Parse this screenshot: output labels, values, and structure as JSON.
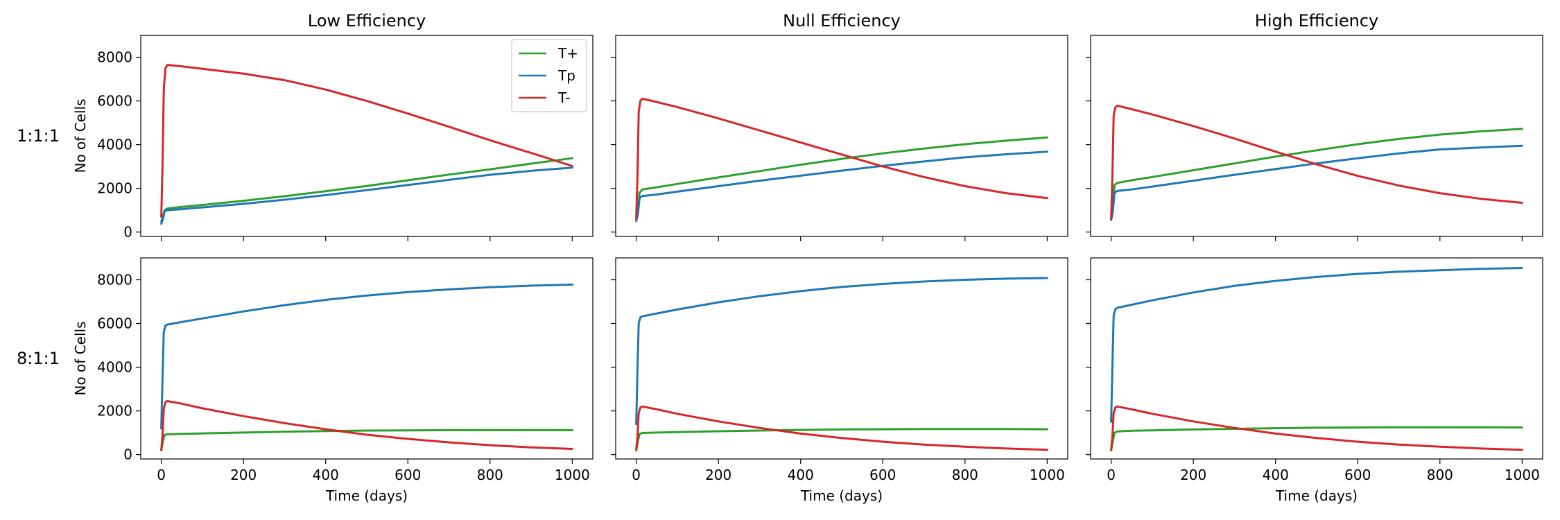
{
  "figure": {
    "column_titles": [
      "Low Efficiency",
      "Null Efficiency",
      "High Efficiency"
    ],
    "row_labels": [
      "1:1:1",
      "8:1:1"
    ],
    "ylabel": "No of Cells",
    "xlabel": "Time (days)",
    "legend": [
      {
        "name": "T+",
        "color": "#2ca02c"
      },
      {
        "name": "Tp",
        "color": "#1f77b4"
      },
      {
        "name": "T-",
        "color": "#d62728"
      }
    ],
    "legend_location": "top-right"
  },
  "chart_data": [
    {
      "type": "line",
      "title": "Low Efficiency",
      "row": "1:1:1",
      "xlabel": "",
      "ylabel": "No of Cells",
      "xlim": [
        -50,
        1050
      ],
      "ylim": [
        -200,
        9000
      ],
      "xticks": [
        0,
        200,
        400,
        600,
        800,
        1000
      ],
      "yticks": [
        0,
        2000,
        4000,
        6000,
        8000
      ],
      "series": [
        {
          "name": "T+",
          "color": "#2ca02c",
          "x": [
            0,
            4,
            8,
            15,
            50,
            100,
            200,
            300,
            400,
            500,
            600,
            700,
            800,
            900,
            1000
          ],
          "y": [
            500,
            700,
            1000,
            1080,
            1150,
            1240,
            1430,
            1640,
            1870,
            2110,
            2370,
            2630,
            2870,
            3130,
            3380
          ]
        },
        {
          "name": "Tp",
          "color": "#1f77b4",
          "x": [
            0,
            4,
            8,
            15,
            50,
            100,
            200,
            300,
            400,
            500,
            600,
            700,
            800,
            900,
            1000
          ],
          "y": [
            380,
            600,
            950,
            1000,
            1050,
            1130,
            1290,
            1480,
            1690,
            1920,
            2150,
            2390,
            2620,
            2800,
            2950
          ]
        },
        {
          "name": "T-",
          "color": "#d62728",
          "x": [
            0,
            3,
            6,
            10,
            15,
            50,
            100,
            200,
            300,
            400,
            500,
            600,
            700,
            800,
            900,
            1000
          ],
          "y": [
            700,
            3000,
            6500,
            7500,
            7650,
            7580,
            7470,
            7250,
            6950,
            6520,
            6000,
            5420,
            4820,
            4200,
            3620,
            3020
          ]
        }
      ]
    },
    {
      "type": "line",
      "title": "Null Efficiency",
      "row": "1:1:1",
      "xlabel": "",
      "ylabel": "",
      "xlim": [
        -50,
        1050
      ],
      "ylim": [
        -200,
        9000
      ],
      "xticks": [
        0,
        200,
        400,
        600,
        800,
        1000
      ],
      "yticks": [
        0,
        2000,
        4000,
        6000,
        8000
      ],
      "series": [
        {
          "name": "T+",
          "color": "#2ca02c",
          "x": [
            0,
            4,
            8,
            15,
            50,
            100,
            200,
            300,
            400,
            500,
            600,
            700,
            800,
            900,
            1000
          ],
          "y": [
            600,
            900,
            1800,
            1950,
            2050,
            2200,
            2500,
            2790,
            3080,
            3350,
            3600,
            3820,
            4020,
            4180,
            4330
          ]
        },
        {
          "name": "Tp",
          "color": "#1f77b4",
          "x": [
            0,
            4,
            8,
            15,
            50,
            100,
            200,
            300,
            400,
            500,
            600,
            700,
            800,
            900,
            1000
          ],
          "y": [
            500,
            800,
            1550,
            1650,
            1720,
            1850,
            2100,
            2350,
            2580,
            2810,
            3030,
            3230,
            3420,
            3560,
            3680
          ]
        },
        {
          "name": "T-",
          "color": "#d62728",
          "x": [
            0,
            3,
            6,
            10,
            15,
            50,
            100,
            200,
            300,
            400,
            500,
            600,
            700,
            800,
            900,
            1000
          ],
          "y": [
            600,
            2500,
            5500,
            6000,
            6100,
            5950,
            5720,
            5200,
            4650,
            4100,
            3550,
            3000,
            2520,
            2100,
            1780,
            1550
          ]
        }
      ]
    },
    {
      "type": "line",
      "title": "High Efficiency",
      "row": "1:1:1",
      "xlabel": "",
      "ylabel": "",
      "xlim": [
        -50,
        1050
      ],
      "ylim": [
        -200,
        9000
      ],
      "xticks": [
        0,
        200,
        400,
        600,
        800,
        1000
      ],
      "yticks": [
        0,
        2000,
        4000,
        6000,
        8000
      ],
      "series": [
        {
          "name": "T+",
          "color": "#2ca02c",
          "x": [
            0,
            4,
            8,
            15,
            50,
            100,
            200,
            300,
            400,
            500,
            600,
            700,
            800,
            900,
            1000
          ],
          "y": [
            700,
            1000,
            2150,
            2250,
            2370,
            2520,
            2830,
            3140,
            3450,
            3740,
            4020,
            4260,
            4460,
            4610,
            4720
          ]
        },
        {
          "name": "Tp",
          "color": "#1f77b4",
          "x": [
            0,
            4,
            8,
            15,
            50,
            100,
            200,
            300,
            400,
            500,
            600,
            700,
            800,
            900,
            1000
          ],
          "y": [
            550,
            900,
            1800,
            1880,
            1950,
            2080,
            2350,
            2620,
            2880,
            3140,
            3380,
            3600,
            3780,
            3870,
            3950
          ]
        },
        {
          "name": "T-",
          "color": "#d62728",
          "x": [
            0,
            3,
            6,
            10,
            15,
            50,
            100,
            200,
            300,
            400,
            500,
            600,
            700,
            800,
            900,
            1000
          ],
          "y": [
            600,
            2500,
            5300,
            5700,
            5780,
            5620,
            5380,
            4850,
            4280,
            3680,
            3100,
            2570,
            2130,
            1780,
            1520,
            1340
          ]
        }
      ]
    },
    {
      "type": "line",
      "title": "",
      "row": "8:1:1",
      "xlabel": "Time (days)",
      "ylabel": "No of Cells",
      "xlim": [
        -50,
        1050
      ],
      "ylim": [
        -200,
        9000
      ],
      "xticks": [
        0,
        200,
        400,
        600,
        800,
        1000
      ],
      "yticks": [
        0,
        2000,
        4000,
        6000,
        8000
      ],
      "series": [
        {
          "name": "T+",
          "color": "#2ca02c",
          "x": [
            0,
            4,
            8,
            15,
            50,
            100,
            200,
            300,
            400,
            500,
            600,
            700,
            800,
            900,
            1000
          ],
          "y": [
            200,
            600,
            900,
            930,
            950,
            970,
            1010,
            1050,
            1080,
            1100,
            1110,
            1120,
            1120,
            1120,
            1120
          ]
        },
        {
          "name": "Tp",
          "color": "#1f77b4",
          "x": [
            0,
            3,
            6,
            10,
            15,
            50,
            100,
            200,
            300,
            400,
            500,
            600,
            700,
            800,
            900,
            1000
          ],
          "y": [
            1200,
            3500,
            5600,
            5900,
            5950,
            6070,
            6230,
            6550,
            6840,
            7080,
            7280,
            7440,
            7560,
            7660,
            7730,
            7780
          ]
        },
        {
          "name": "T-",
          "color": "#d62728",
          "x": [
            0,
            3,
            6,
            10,
            15,
            50,
            100,
            200,
            300,
            400,
            500,
            600,
            700,
            800,
            900,
            1000
          ],
          "y": [
            200,
            900,
            2100,
            2400,
            2450,
            2330,
            2120,
            1760,
            1440,
            1160,
            910,
            720,
            560,
            430,
            330,
            260
          ]
        }
      ]
    },
    {
      "type": "line",
      "title": "",
      "row": "8:1:1",
      "xlabel": "Time (days)",
      "ylabel": "",
      "xlim": [
        -50,
        1050
      ],
      "ylim": [
        -200,
        9000
      ],
      "xticks": [
        0,
        200,
        400,
        600,
        800,
        1000
      ],
      "yticks": [
        0,
        2000,
        4000,
        6000,
        8000
      ],
      "series": [
        {
          "name": "T+",
          "color": "#2ca02c",
          "x": [
            0,
            4,
            8,
            15,
            50,
            100,
            200,
            300,
            400,
            500,
            600,
            700,
            800,
            900,
            1000
          ],
          "y": [
            200,
            600,
            950,
            990,
            1010,
            1030,
            1070,
            1100,
            1130,
            1150,
            1160,
            1170,
            1170,
            1170,
            1160
          ]
        },
        {
          "name": "Tp",
          "color": "#1f77b4",
          "x": [
            0,
            3,
            6,
            10,
            15,
            50,
            100,
            200,
            300,
            400,
            500,
            600,
            700,
            800,
            900,
            1000
          ],
          "y": [
            1400,
            3800,
            6000,
            6280,
            6330,
            6460,
            6640,
            6970,
            7250,
            7480,
            7670,
            7810,
            7920,
            8000,
            8050,
            8080
          ]
        },
        {
          "name": "T-",
          "color": "#d62728",
          "x": [
            0,
            3,
            6,
            10,
            15,
            50,
            100,
            200,
            300,
            400,
            500,
            600,
            700,
            800,
            900,
            1000
          ],
          "y": [
            200,
            800,
            1900,
            2150,
            2200,
            2070,
            1870,
            1520,
            1220,
            960,
            760,
            590,
            460,
            360,
            280,
            220
          ]
        }
      ]
    },
    {
      "type": "line",
      "title": "",
      "row": "8:1:1",
      "xlabel": "Time (days)",
      "ylabel": "",
      "xlim": [
        -50,
        1050
      ],
      "ylim": [
        -200,
        9000
      ],
      "xticks": [
        0,
        200,
        400,
        600,
        800,
        1000
      ],
      "yticks": [
        0,
        2000,
        4000,
        6000,
        8000
      ],
      "series": [
        {
          "name": "T+",
          "color": "#2ca02c",
          "x": [
            0,
            4,
            8,
            15,
            50,
            100,
            200,
            300,
            400,
            500,
            600,
            700,
            800,
            900,
            1000
          ],
          "y": [
            200,
            600,
            1000,
            1060,
            1090,
            1110,
            1150,
            1180,
            1210,
            1230,
            1240,
            1250,
            1250,
            1250,
            1240
          ]
        },
        {
          "name": "Tp",
          "color": "#1f77b4",
          "x": [
            0,
            3,
            6,
            10,
            15,
            50,
            100,
            200,
            300,
            400,
            500,
            600,
            700,
            800,
            900,
            1000
          ],
          "y": [
            1500,
            4000,
            6350,
            6650,
            6720,
            6860,
            7060,
            7420,
            7720,
            7950,
            8130,
            8270,
            8370,
            8440,
            8500,
            8540
          ]
        },
        {
          "name": "T-",
          "color": "#d62728",
          "x": [
            0,
            3,
            6,
            10,
            15,
            50,
            100,
            200,
            300,
            400,
            500,
            600,
            700,
            800,
            900,
            1000
          ],
          "y": [
            200,
            800,
            1900,
            2150,
            2200,
            2070,
            1870,
            1520,
            1220,
            960,
            760,
            590,
            460,
            360,
            280,
            220
          ]
        }
      ]
    }
  ]
}
